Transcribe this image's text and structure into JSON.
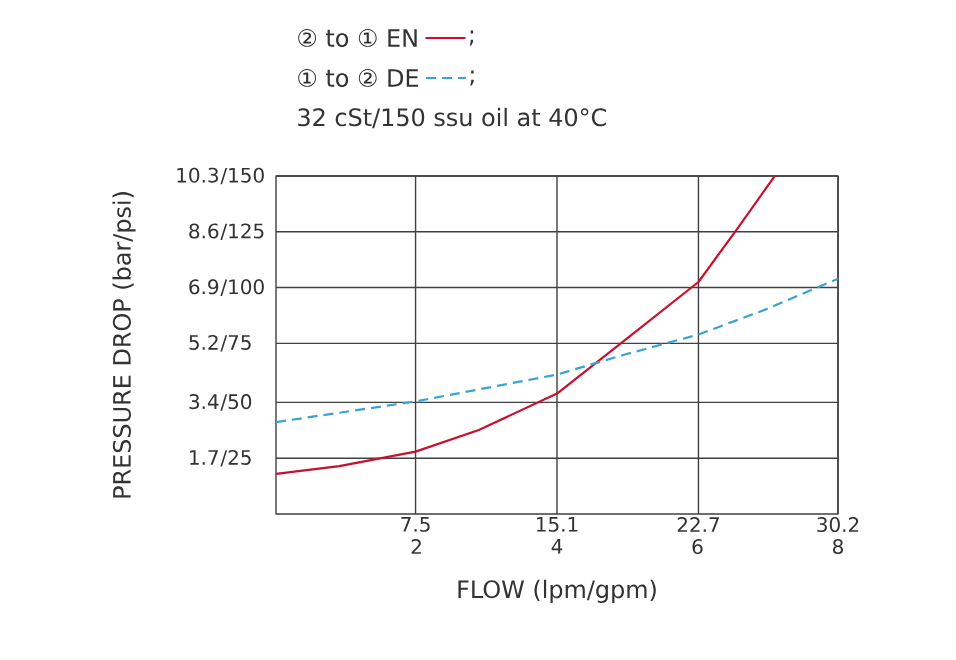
{
  "chart_data": {
    "type": "line",
    "xlabel": "FLOW (lpm/gpm)",
    "ylabel": "PRESSURE DROP (bar/psi)",
    "annotations": [
      ";",
      ";",
      "32 cSt/150 ssu oil at 40°C"
    ],
    "xlim": [
      0,
      30.2
    ],
    "xticks": [
      7.5,
      15.1,
      22.7,
      30.2
    ],
    "x2lim": [
      0,
      8
    ],
    "x2ticks": [
      2,
      4,
      6,
      8
    ],
    "ylim": [
      0,
      10.3
    ],
    "yticks": [
      1.7,
      3.4,
      5.2,
      6.9,
      8.6,
      10.3
    ],
    "y2lim": [
      0,
      150
    ],
    "y2ticks": [
      {
        "value": 25,
        "label": "/25"
      },
      {
        "value": 50,
        "label": "/50"
      },
      {
        "value": 75,
        "label": "/75"
      },
      {
        "value": 100,
        "label": "/100"
      },
      {
        "value": 125,
        "label": "/125"
      },
      {
        "value": 150,
        "label": "/150"
      }
    ],
    "grid": true,
    "legend": "top left",
    "marker": "none",
    "series": [
      {
        "name": "② to ① EN",
        "color": "#c8102e",
        "line_style": "solid",
        "x": [
          0,
          3.4,
          7.5,
          10.9,
          15.1,
          18.75,
          22.7,
          24.9,
          26.8
        ],
        "values": [
          1.22,
          1.46,
          1.9,
          2.56,
          3.67,
          5.3,
          7.07,
          8.78,
          10.3
        ]
      },
      {
        "name": "① to ② DE",
        "color": "#3ba3d0",
        "line_style": "dashed",
        "x": [
          0,
          7.5,
          15.1,
          18.75,
          22.7,
          26.25,
          30.2
        ],
        "values": [
          2.8,
          3.43,
          4.25,
          4.86,
          5.47,
          6.22,
          7.17
        ]
      }
    ]
  }
}
